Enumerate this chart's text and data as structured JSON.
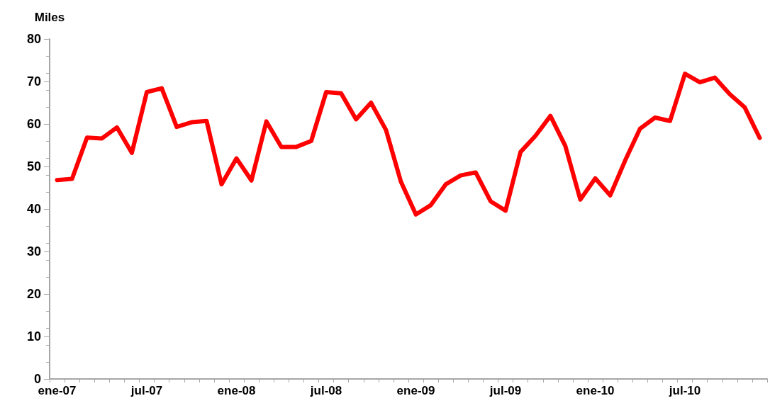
{
  "chart_data": {
    "type": "line",
    "ylabel": "Miles",
    "categories": [
      "ene-07",
      null,
      null,
      null,
      null,
      null,
      "jul-07",
      null,
      null,
      null,
      null,
      null,
      "ene-08",
      null,
      null,
      null,
      null,
      null,
      "jul-08",
      null,
      null,
      null,
      null,
      null,
      "ene-09",
      null,
      null,
      null,
      null,
      null,
      "jul-09",
      null,
      null,
      null,
      null,
      null,
      "ene-10",
      null,
      null,
      null,
      null,
      null,
      "jul-10",
      null,
      null,
      null,
      null,
      null
    ],
    "series": [
      {
        "color": "#ff0000",
        "values": [
          46.8,
          47.1,
          56.8,
          56.6,
          59.2,
          53.2,
          67.5,
          68.4,
          59.3,
          60.4,
          60.7,
          45.8,
          51.9,
          46.7,
          60.6,
          54.6,
          54.6,
          56.0,
          67.5,
          67.2,
          61.1,
          65.0,
          58.6,
          46.4,
          38.7,
          40.9,
          45.8,
          47.9,
          48.6,
          41.8,
          39.6,
          53.4,
          57.2,
          61.9,
          54.8,
          42.2,
          47.2,
          43.2,
          51.4,
          58.9,
          61.5,
          60.7,
          71.8,
          69.8,
          70.9,
          67.0,
          63.9,
          56.7
        ]
      }
    ],
    "ylim": [
      0,
      80
    ],
    "yticks": [
      0,
      10,
      20,
      30,
      40,
      50,
      60,
      70,
      80
    ],
    "grid": false,
    "marker": "none",
    "line_style": "solid"
  }
}
